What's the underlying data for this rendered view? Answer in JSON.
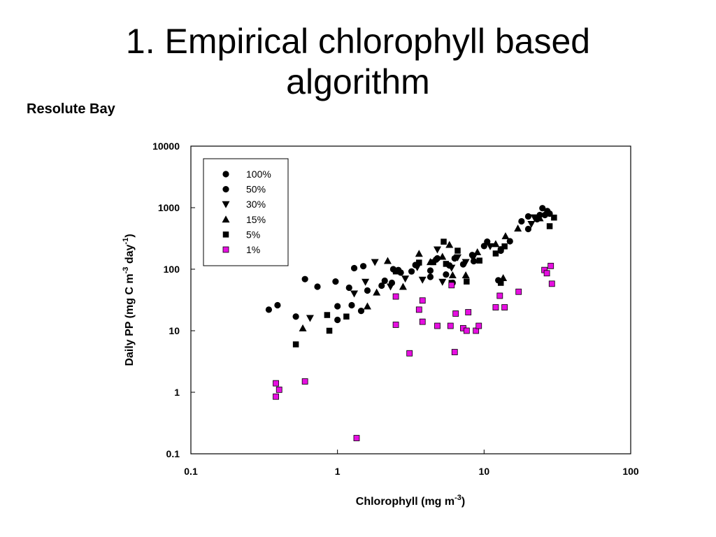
{
  "slide": {
    "title_line1": "1. Empirical chlorophyll based",
    "title_line2": "algorithm",
    "subtitle": "Resolute Bay"
  },
  "colors": {
    "axis": "#000000",
    "marker_black": "#000000",
    "marker_magenta": "#e60fe0"
  },
  "chart_data": {
    "type": "scatter",
    "xscale": "log",
    "yscale": "log",
    "xlim": [
      0.1,
      100
    ],
    "ylim": [
      0.1,
      10000
    ],
    "xlabel": "Chlorophyll (mg m",
    "xlabel_sup": "-3",
    "xlabel_end": ")",
    "ylabel": "Daily PP (mg C m",
    "ylabel_sup1": "-3",
    "ylabel_mid": " day",
    "ylabel_sup2": "-1",
    "ylabel_end": ")",
    "xticks": [
      "0.1",
      "1",
      "10",
      "100"
    ],
    "yticks": [
      "0.1",
      "1",
      "10",
      "100",
      "1000",
      "10000"
    ],
    "grid": false,
    "legend_position": "top-left-inset",
    "series": [
      {
        "name": "100%",
        "marker": "circle",
        "color": "#000000",
        "points": [
          [
            0.34,
            22
          ],
          [
            0.39,
            26
          ],
          [
            0.52,
            17
          ],
          [
            0.6,
            69
          ],
          [
            0.73,
            52
          ],
          [
            0.97,
            63
          ],
          [
            1.0,
            25
          ],
          [
            1.2,
            50
          ],
          [
            1.3,
            104
          ],
          [
            1.5,
            112
          ],
          [
            2.1,
            65
          ],
          [
            2.4,
            100
          ],
          [
            3.2,
            92
          ],
          [
            4.3,
            75
          ],
          [
            4.8,
            150
          ],
          [
            5.5,
            82
          ],
          [
            6.1,
            60
          ],
          [
            8.5,
            135
          ],
          [
            10.5,
            280
          ],
          [
            13,
            200
          ],
          [
            15,
            285
          ],
          [
            18,
            600
          ],
          [
            20,
            450
          ],
          [
            25,
            980
          ],
          [
            26,
            760
          ],
          [
            28,
            800
          ]
        ]
      },
      {
        "name": "50%",
        "marker": "circle",
        "color": "#000000",
        "points": [
          [
            1.0,
            15
          ],
          [
            1.25,
            26
          ],
          [
            1.45,
            21
          ],
          [
            1.6,
            45
          ],
          [
            2.0,
            54
          ],
          [
            2.35,
            60
          ],
          [
            2.6,
            97
          ],
          [
            2.7,
            88
          ],
          [
            3.4,
            117
          ],
          [
            4.3,
            95
          ],
          [
            4.7,
            143
          ],
          [
            5.8,
            115
          ],
          [
            6.3,
            150
          ],
          [
            7.2,
            120
          ],
          [
            8.3,
            170
          ],
          [
            10,
            238
          ],
          [
            12.5,
            66
          ],
          [
            13,
            210
          ],
          [
            20,
            722
          ],
          [
            23,
            650
          ],
          [
            24,
            760
          ],
          [
            27,
            880
          ]
        ]
      },
      {
        "name": "30%",
        "marker": "triangle-down",
        "color": "#000000",
        "points": [
          [
            0.65,
            16
          ],
          [
            1.3,
            40
          ],
          [
            1.55,
            62
          ],
          [
            1.8,
            130
          ],
          [
            2.3,
            52
          ],
          [
            2.9,
            70
          ],
          [
            3.5,
            107
          ],
          [
            3.8,
            67
          ],
          [
            4.8,
            208
          ],
          [
            5.2,
            62
          ],
          [
            6.0,
            105
          ],
          [
            6.6,
            155
          ],
          [
            7.5,
            130
          ],
          [
            8.4,
            150
          ],
          [
            11,
            235
          ],
          [
            21,
            540
          ],
          [
            22,
            690
          ]
        ]
      },
      {
        "name": "15%",
        "marker": "triangle-up",
        "color": "#000000",
        "points": [
          [
            0.58,
            11
          ],
          [
            1.6,
            25
          ],
          [
            1.85,
            42
          ],
          [
            2.2,
            137
          ],
          [
            2.8,
            52
          ],
          [
            3.6,
            179
          ],
          [
            4.3,
            131
          ],
          [
            5.2,
            160
          ],
          [
            5.8,
            250
          ],
          [
            6.1,
            80
          ],
          [
            7.5,
            80
          ],
          [
            9,
            190
          ],
          [
            12,
            257
          ],
          [
            13.5,
            72
          ],
          [
            14,
            345
          ],
          [
            17,
            460
          ],
          [
            24,
            675
          ],
          [
            27,
            850
          ]
        ]
      },
      {
        "name": "5%",
        "marker": "square",
        "color": "#000000",
        "points": [
          [
            0.52,
            6
          ],
          [
            0.85,
            18
          ],
          [
            0.88,
            10
          ],
          [
            1.15,
            17
          ],
          [
            2.5,
            92
          ],
          [
            3.6,
            128
          ],
          [
            4.5,
            130
          ],
          [
            5.3,
            280
          ],
          [
            5.5,
            122
          ],
          [
            6.0,
            60
          ],
          [
            6.6,
            200
          ],
          [
            7.6,
            63
          ],
          [
            9.3,
            138
          ],
          [
            12,
            180
          ],
          [
            13,
            60
          ],
          [
            13.8,
            235
          ],
          [
            28,
            500
          ],
          [
            30,
            690
          ]
        ]
      },
      {
        "name": "1%",
        "marker": "square",
        "color": "#e60fe0",
        "points": [
          [
            0.38,
            1.4
          ],
          [
            0.38,
            0.85
          ],
          [
            0.4,
            1.1
          ],
          [
            0.6,
            1.5
          ],
          [
            1.35,
            0.18
          ],
          [
            2.5,
            36
          ],
          [
            2.5,
            12.5
          ],
          [
            3.1,
            4.3
          ],
          [
            3.6,
            22
          ],
          [
            3.8,
            14
          ],
          [
            3.8,
            31
          ],
          [
            4.8,
            12
          ],
          [
            5.9,
            12
          ],
          [
            6.0,
            55
          ],
          [
            6.3,
            4.5
          ],
          [
            6.4,
            19
          ],
          [
            7.2,
            11
          ],
          [
            7.6,
            10
          ],
          [
            7.8,
            20
          ],
          [
            8.8,
            10
          ],
          [
            9.2,
            12
          ],
          [
            12,
            24
          ],
          [
            12.8,
            37
          ],
          [
            13.8,
            24
          ],
          [
            17.2,
            43
          ],
          [
            25.8,
            97
          ],
          [
            26.8,
            86
          ],
          [
            28.5,
            113
          ],
          [
            29,
            58
          ]
        ]
      }
    ]
  }
}
